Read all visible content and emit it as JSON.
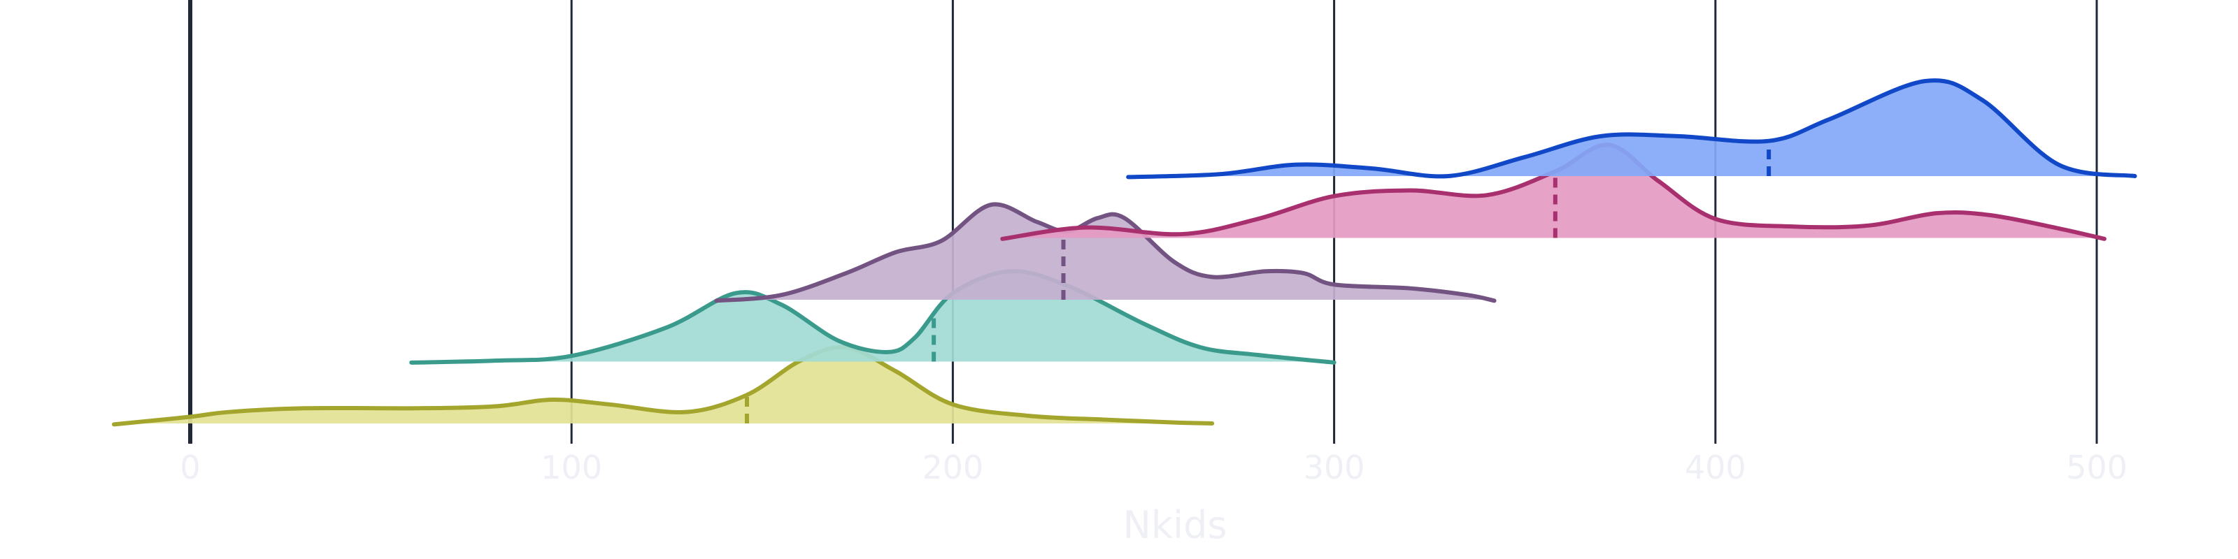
{
  "chart_data": {
    "type": "area",
    "title": "",
    "xlabel": "Nkids",
    "ylabel": "",
    "xlim": [
      -22,
      510
    ],
    "grid": true,
    "x_ticks": [
      {
        "value": 0,
        "label": "0"
      },
      {
        "value": 100,
        "label": "100"
      },
      {
        "value": 200,
        "label": "200"
      },
      {
        "value": 300,
        "label": "300"
      },
      {
        "value": 400,
        "label": "400"
      },
      {
        "value": 500,
        "label": "500"
      }
    ],
    "series": [
      {
        "color": "#a4a52c",
        "fill": "#e3e295",
        "baseline_row": 0,
        "median": 146,
        "curve": [
          [
            -20,
            -1
          ],
          [
            0,
            7
          ],
          [
            10,
            12
          ],
          [
            30,
            16
          ],
          [
            60,
            16
          ],
          [
            80,
            18
          ],
          [
            95,
            25
          ],
          [
            110,
            20
          ],
          [
            130,
            12
          ],
          [
            146,
            30
          ],
          [
            160,
            66
          ],
          [
            172,
            80
          ],
          [
            185,
            55
          ],
          [
            200,
            20
          ],
          [
            220,
            8
          ],
          [
            240,
            4
          ],
          [
            258,
            1
          ],
          [
            268,
            0
          ]
        ]
      },
      {
        "color": "#3a9b8d",
        "fill": "#a2dbd5",
        "baseline_row": 1,
        "median": 195,
        "curve": [
          [
            58,
            -1
          ],
          [
            80,
            1
          ],
          [
            100,
            6
          ],
          [
            125,
            36
          ],
          [
            143,
            72
          ],
          [
            155,
            60
          ],
          [
            170,
            22
          ],
          [
            183,
            10
          ],
          [
            190,
            25
          ],
          [
            200,
            72
          ],
          [
            215,
            95
          ],
          [
            230,
            80
          ],
          [
            250,
            40
          ],
          [
            265,
            15
          ],
          [
            280,
            7
          ],
          [
            300,
            -1
          ]
        ]
      },
      {
        "color": "#725382",
        "fill": "#c4b0cf",
        "baseline_row": 2,
        "median": 229,
        "curve": [
          [
            138,
            -1
          ],
          [
            155,
            5
          ],
          [
            172,
            28
          ],
          [
            185,
            50
          ],
          [
            197,
            62
          ],
          [
            210,
            100
          ],
          [
            222,
            82
          ],
          [
            230,
            72
          ],
          [
            238,
            86
          ],
          [
            245,
            86
          ],
          [
            258,
            40
          ],
          [
            268,
            24
          ],
          [
            282,
            30
          ],
          [
            292,
            28
          ],
          [
            300,
            16
          ],
          [
            320,
            12
          ],
          [
            335,
            5
          ],
          [
            342,
            -1
          ]
        ]
      },
      {
        "color": "#a8306f",
        "fill": "#e59ac2",
        "baseline_row": 3,
        "median": 358,
        "curve": [
          [
            213,
            -1
          ],
          [
            235,
            11
          ],
          [
            260,
            4
          ],
          [
            280,
            20
          ],
          [
            300,
            44
          ],
          [
            320,
            50
          ],
          [
            340,
            45
          ],
          [
            358,
            70
          ],
          [
            372,
            98
          ],
          [
            385,
            60
          ],
          [
            400,
            20
          ],
          [
            420,
            12
          ],
          [
            440,
            13
          ],
          [
            458,
            26
          ],
          [
            472,
            24
          ],
          [
            490,
            10
          ],
          [
            502,
            -1
          ]
        ]
      },
      {
        "color": "#1048c7",
        "fill": "#83a8f8",
        "baseline_row": 4,
        "median": 414,
        "curve": [
          [
            246,
            -1
          ],
          [
            270,
            2
          ],
          [
            290,
            12
          ],
          [
            310,
            8
          ],
          [
            330,
            0
          ],
          [
            350,
            20
          ],
          [
            370,
            42
          ],
          [
            390,
            42
          ],
          [
            414,
            37
          ],
          [
            430,
            60
          ],
          [
            455,
            100
          ],
          [
            470,
            80
          ],
          [
            490,
            12
          ],
          [
            510,
            0
          ]
        ]
      }
    ]
  }
}
